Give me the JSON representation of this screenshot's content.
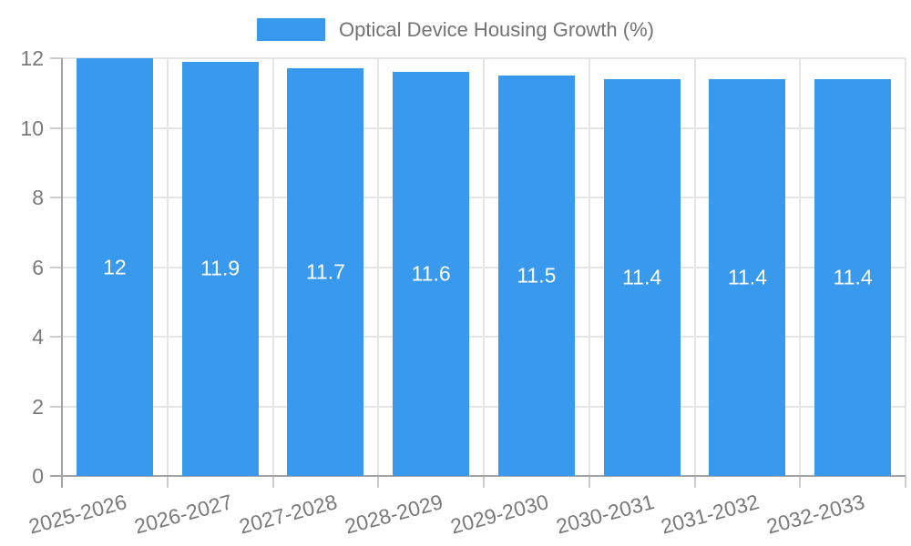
{
  "chart_data": {
    "type": "bar",
    "title": "Optical Device Housing Growth (%)",
    "legend": {
      "label": "Optical Device Housing Growth (%)",
      "position": "top"
    },
    "categories": [
      "2025-2026",
      "2026-2027",
      "2027-2028",
      "2028-2029",
      "2029-2030",
      "2030-2031",
      "2031-2032",
      "2032-2033"
    ],
    "values": [
      12,
      11.9,
      11.7,
      11.6,
      11.5,
      11.4,
      11.4,
      11.4
    ],
    "bar_labels": [
      "12",
      "11.9",
      "11.7",
      "11.6",
      "11.5",
      "11.4",
      "11.4",
      "11.4"
    ],
    "xlabel": "",
    "ylabel": "",
    "ylim": [
      0,
      12
    ],
    "yticks": [
      0,
      2,
      4,
      6,
      8,
      10,
      12
    ],
    "grid": true,
    "x_label_rotation_deg": -15,
    "colors": {
      "bar": "#3999ED",
      "bar_label": "#FFFFFF",
      "grid": "#E5E5E5",
      "tick": "#CCCCCC",
      "axis": "#A3A3A3",
      "tick_label": "#7A7A7A",
      "legend_text": "#737373"
    }
  }
}
